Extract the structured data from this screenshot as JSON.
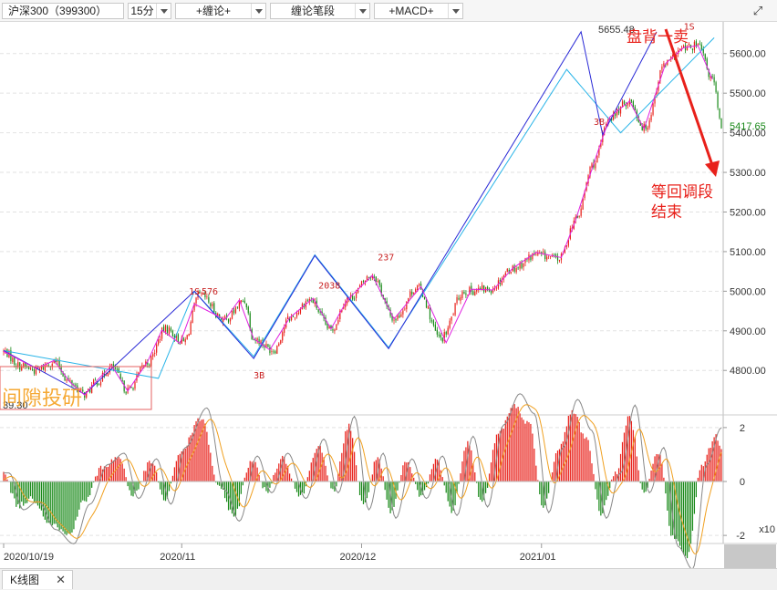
{
  "toolbar": {
    "instrument": "沪深300（399300）",
    "period": "15分",
    "indicator1": "+缠论+",
    "indicator2": "缠论笔段",
    "indicator3": "+MACD+",
    "expand_icon": "expand-icon"
  },
  "footer": {
    "tab_label": "K线图",
    "close_label": "✕"
  },
  "colors": {
    "up": "#e8201a",
    "down": "#1a8a1a",
    "bi": "#e020e0",
    "segment_dark": "#2a2ad6",
    "segment_light": "#28b4e8",
    "annotation": "#e8201a",
    "watermark": "#f5a020",
    "price_label": "#1a8a1a"
  },
  "chart_data": [
    {
      "type": "candlestick",
      "ylim": [
        4690,
        5680
      ],
      "y_ticks": [
        "5600.00",
        "5500.00",
        "5400.00",
        "5300.00",
        "5200.00",
        "5100.00",
        "5000.00",
        "4900.00",
        "4800.00"
      ],
      "y_tick_values": [
        5600,
        5500,
        5400,
        5300,
        5200,
        5100,
        5000,
        4900,
        4800
      ],
      "x_tick_labels": [
        "2020/10/19",
        "2020/11",
        "2020/12",
        "2021/01"
      ],
      "x_tick_index": [
        0,
        99,
        199,
        299
      ],
      "bar_count": 400,
      "last_price": "5417.65",
      "high_label": "5655.48",
      "low_label": "39.30",
      "bi_path": [
        [
          0,
          4848
        ],
        [
          18,
          4805
        ],
        [
          28,
          4825
        ],
        [
          37,
          4770
        ],
        [
          45,
          4738
        ],
        [
          52,
          4775
        ],
        [
          60,
          4812
        ],
        [
          69,
          4748
        ],
        [
          80,
          4822
        ],
        [
          88,
          4902
        ],
        [
          98,
          4868
        ],
        [
          106,
          4968
        ],
        [
          123,
          4928
        ],
        [
          131,
          4978
        ],
        [
          139,
          4880
        ],
        [
          148,
          4852
        ],
        [
          159,
          4933
        ],
        [
          172,
          4982
        ],
        [
          182,
          4905
        ],
        [
          191,
          4978
        ],
        [
          205,
          5040
        ],
        [
          217,
          4930
        ],
        [
          232,
          5012
        ],
        [
          246,
          4870
        ],
        [
          260,
          5005
        ],
        [
          272,
          5003
        ],
        [
          283,
          5058
        ],
        [
          296,
          5098
        ],
        [
          310,
          5085
        ],
        [
          318,
          5180
        ],
        [
          328,
          5322
        ],
        [
          337,
          5440
        ],
        [
          348,
          5480
        ],
        [
          356,
          5410
        ],
        [
          368,
          5575
        ],
        [
          378,
          5615
        ],
        [
          386,
          5620
        ],
        [
          394,
          5535
        ]
      ],
      "candle_anchors": [
        [
          0,
          4848
        ],
        [
          9,
          4812
        ],
        [
          18,
          4800
        ],
        [
          28,
          4822
        ],
        [
          37,
          4770
        ],
        [
          45,
          4740
        ],
        [
          52,
          4772
        ],
        [
          60,
          4808
        ],
        [
          69,
          4750
        ],
        [
          80,
          4820
        ],
        [
          90,
          4905
        ],
        [
          100,
          4872
        ],
        [
          109,
          4990
        ],
        [
          123,
          4928
        ],
        [
          134,
          4976
        ],
        [
          139,
          4880
        ],
        [
          150,
          4852
        ],
        [
          159,
          4932
        ],
        [
          170,
          4978
        ],
        [
          182,
          4903
        ],
        [
          191,
          4980
        ],
        [
          205,
          5040
        ],
        [
          217,
          4930
        ],
        [
          230,
          5010
        ],
        [
          243,
          4880
        ],
        [
          256,
          5000
        ],
        [
          270,
          5005
        ],
        [
          283,
          5058
        ],
        [
          296,
          5092
        ],
        [
          309,
          5082
        ],
        [
          318,
          5180
        ],
        [
          328,
          5322
        ],
        [
          337,
          5440
        ],
        [
          348,
          5480
        ],
        [
          356,
          5412
        ],
        [
          368,
          5575
        ],
        [
          378,
          5612
        ],
        [
          386,
          5620
        ],
        [
          394,
          5535
        ],
        [
          399,
          5418
        ]
      ],
      "segment_dark": [
        [
          0,
          4850
        ],
        [
          45,
          4740
        ],
        [
          106,
          5000
        ],
        [
          139,
          4830
        ],
        [
          173,
          5090
        ],
        [
          214,
          4855
        ],
        [
          321,
          5655
        ],
        [
          333,
          5395
        ],
        [
          363,
          5655
        ]
      ],
      "segment_light": [
        [
          0,
          4850
        ],
        [
          86,
          4780
        ],
        [
          106,
          5000
        ],
        [
          139,
          4835
        ],
        [
          173,
          5092
        ],
        [
          214,
          4858
        ],
        [
          313,
          5560
        ],
        [
          343,
          5400
        ],
        [
          395,
          5640
        ]
      ],
      "signal_labels": [
        {
          "text": "1S",
          "i": 103,
          "price": 4992
        },
        {
          "text": "576",
          "i": 110,
          "price": 4992
        },
        {
          "text": "3B",
          "i": 139,
          "price": 4780
        },
        {
          "text": "2038",
          "i": 175,
          "price": 5006
        },
        {
          "text": "237",
          "i": 208,
          "price": 5078
        },
        {
          "text": "3B",
          "i": 328,
          "price": 5420
        },
        {
          "text": "1S",
          "i": 378,
          "price": 5660
        }
      ],
      "annotations": [
        {
          "text": "盘背一卖"
        },
        {
          "text": "等回调段"
        },
        {
          "text": "结束"
        }
      ],
      "watermark": "间隙投研"
    },
    {
      "type": "macd",
      "ylim": [
        -2.3,
        2.3
      ],
      "y_ticks": [
        "2",
        "0",
        "-2"
      ],
      "y_tick_values": [
        2,
        0,
        -2
      ],
      "unit_label": "x10",
      "anchors": [
        [
          0,
          0.3
        ],
        [
          8,
          -1.0
        ],
        [
          16,
          -0.7
        ],
        [
          26,
          -1.7
        ],
        [
          36,
          -2.2
        ],
        [
          45,
          -0.8
        ],
        [
          55,
          0.6
        ],
        [
          64,
          1.0
        ],
        [
          72,
          -0.6
        ],
        [
          82,
          0.8
        ],
        [
          90,
          -0.8
        ],
        [
          98,
          1.2
        ],
        [
          110,
          2.6
        ],
        [
          120,
          -0.3
        ],
        [
          128,
          -1.4
        ],
        [
          138,
          0.9
        ],
        [
          146,
          -0.4
        ],
        [
          155,
          1.0
        ],
        [
          165,
          -0.6
        ],
        [
          175,
          1.5
        ],
        [
          183,
          -0.4
        ],
        [
          192,
          2.3
        ],
        [
          200,
          -1.0
        ],
        [
          208,
          1.0
        ],
        [
          215,
          -1.3
        ],
        [
          224,
          0.8
        ],
        [
          232,
          -0.6
        ],
        [
          241,
          0.9
        ],
        [
          249,
          -1.2
        ],
        [
          258,
          1.6
        ],
        [
          266,
          -0.9
        ],
        [
          275,
          2.0
        ],
        [
          284,
          3.1
        ],
        [
          292,
          2.4
        ],
        [
          300,
          -1.1
        ],
        [
          308,
          1.2
        ],
        [
          316,
          2.9
        ],
        [
          324,
          1.8
        ],
        [
          332,
          -1.3
        ],
        [
          340,
          0.3
        ],
        [
          348,
          2.7
        ],
        [
          356,
          -0.4
        ],
        [
          364,
          1.2
        ],
        [
          372,
          -2.3
        ],
        [
          380,
          -3.1
        ],
        [
          388,
          0.6
        ],
        [
          396,
          1.9
        ],
        [
          399,
          1.3
        ]
      ]
    }
  ]
}
